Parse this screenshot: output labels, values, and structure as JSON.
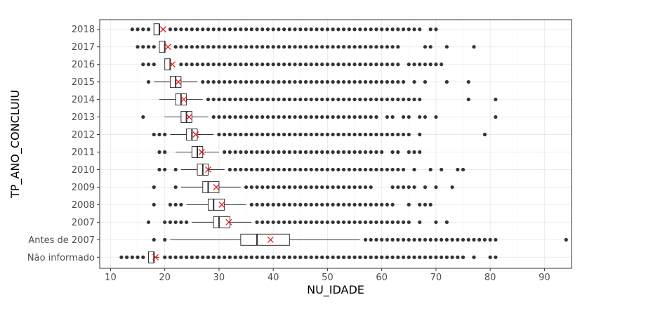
{
  "chart_data": {
    "type": "boxplot",
    "orientation": "horizontal",
    "xlabel": "NU_IDADE",
    "ylabel": "TP_ANO_CONCLUIU",
    "xlim": [
      8,
      95
    ],
    "x_ticks": [
      10,
      20,
      30,
      40,
      50,
      60,
      70,
      80,
      90
    ],
    "grid": true,
    "mean_marker": "x",
    "mean_color": "#e41a1c",
    "box_color": "#333333",
    "point_color": "#333333",
    "categories": [
      "2018",
      "2017",
      "2016",
      "2015",
      "2014",
      "2013",
      "2012",
      "2011",
      "2010",
      "2009",
      "2008",
      "2007",
      "Antes de 2007",
      "Não informado"
    ],
    "boxes": [
      {
        "category": "2018",
        "whisker_low": 18,
        "q1": 18,
        "median": 19,
        "q3": 19,
        "whisker_high": 19,
        "mean": 19.7,
        "outliers_low": [
          14,
          15,
          16,
          17
        ],
        "dense_high": [
          21,
          67
        ],
        "outliers_high": [
          69,
          70
        ]
      },
      {
        "category": "2017",
        "whisker_low": 19,
        "q1": 19,
        "median": 20,
        "q3": 20,
        "whisker_high": 20,
        "mean": 20.6,
        "outliers_low": [
          15,
          16,
          17,
          18
        ],
        "dense_high": [
          22,
          62
        ],
        "outliers_high": [
          63,
          68,
          69,
          72,
          77
        ]
      },
      {
        "category": "2016",
        "whisker_low": 20,
        "q1": 20,
        "median": 21,
        "q3": 21,
        "whisker_high": 21,
        "mean": 21.4,
        "outliers_low": [
          16,
          17,
          18
        ],
        "dense_high": [
          23,
          63
        ],
        "outliers_high": [
          65,
          66,
          67,
          68,
          69,
          70,
          71
        ]
      },
      {
        "category": "2015",
        "whisker_low": 18,
        "q1": 21,
        "median": 22,
        "q3": 23,
        "whisker_high": 26,
        "mean": 22.5,
        "outliers_low": [
          17
        ],
        "dense_high": [
          27,
          64
        ],
        "outliers_high": [
          66,
          68,
          72,
          76
        ]
      },
      {
        "category": "2014",
        "whisker_low": 19,
        "q1": 22,
        "median": 23,
        "q3": 24,
        "whisker_high": 27,
        "mean": 23.5,
        "outliers_low": [],
        "dense_high": [
          28,
          67
        ],
        "outliers_high": [
          76,
          81
        ]
      },
      {
        "category": "2013",
        "whisker_low": 20,
        "q1": 23,
        "median": 24,
        "q3": 25,
        "whisker_high": 28,
        "mean": 24.5,
        "outliers_low": [
          16
        ],
        "dense_high": [
          29,
          59
        ],
        "outliers_high": [
          61,
          62,
          64,
          65,
          67,
          68,
          70,
          81
        ]
      },
      {
        "category": "2012",
        "whisker_low": 21,
        "q1": 24,
        "median": 25,
        "q3": 26,
        "whisker_high": 29,
        "mean": 25.7,
        "outliers_low": [
          18,
          19,
          20
        ],
        "dense_high": [
          30,
          65
        ],
        "outliers_high": [
          67,
          79
        ]
      },
      {
        "category": "2011",
        "whisker_low": 22,
        "q1": 25,
        "median": 26,
        "q3": 27,
        "whisker_high": 30,
        "mean": 26.8,
        "outliers_low": [
          19,
          20
        ],
        "dense_high": [
          31,
          60
        ],
        "outliers_high": [
          62,
          63,
          65,
          66,
          67
        ]
      },
      {
        "category": "2010",
        "whisker_low": 23,
        "q1": 26,
        "median": 27,
        "q3": 28,
        "whisker_high": 31,
        "mean": 28.0,
        "outliers_low": [
          19,
          20,
          22
        ],
        "dense_high": [
          32,
          64
        ],
        "outliers_high": [
          66,
          69,
          71,
          74,
          75
        ]
      },
      {
        "category": "2009",
        "whisker_low": 23,
        "q1": 27,
        "median": 28,
        "q3": 30,
        "whisker_high": 34,
        "mean": 29.5,
        "outliers_low": [
          18,
          22
        ],
        "dense_high": [
          35,
          58
        ],
        "outliers_high": [
          62,
          63,
          64,
          65,
          66,
          68,
          70,
          73
        ]
      },
      {
        "category": "2008",
        "whisker_low": 24,
        "q1": 28,
        "median": 29,
        "q3": 31,
        "whisker_high": 35,
        "mean": 30.5,
        "outliers_low": [
          18,
          21,
          22,
          23
        ],
        "dense_high": [
          36,
          62
        ],
        "outliers_high": [
          65,
          67,
          68,
          69
        ]
      },
      {
        "category": "2007",
        "whisker_low": 25,
        "q1": 29,
        "median": 30,
        "q3": 32,
        "whisker_high": 36,
        "mean": 31.8,
        "outliers_low": [
          17,
          20,
          21,
          22,
          23,
          24
        ],
        "dense_high": [
          37,
          65
        ],
        "outliers_high": [
          67,
          70,
          72
        ]
      },
      {
        "category": "Antes de 2007",
        "whisker_low": 21,
        "q1": 34,
        "median": 37,
        "q3": 43,
        "whisker_high": 56,
        "mean": 39.5,
        "outliers_low": [
          18,
          20
        ],
        "dense_high": [
          57,
          81
        ],
        "outliers_high": [
          94
        ]
      },
      {
        "category": "Não informado",
        "whisker_low": 17,
        "q1": 17,
        "median": 18,
        "q3": 18,
        "whisker_high": 19,
        "mean": 18.3,
        "outliers_low": [
          12,
          13,
          14,
          15,
          16
        ],
        "dense_high": [
          20,
          75
        ],
        "outliers_high": [
          77,
          80,
          81
        ]
      }
    ]
  }
}
